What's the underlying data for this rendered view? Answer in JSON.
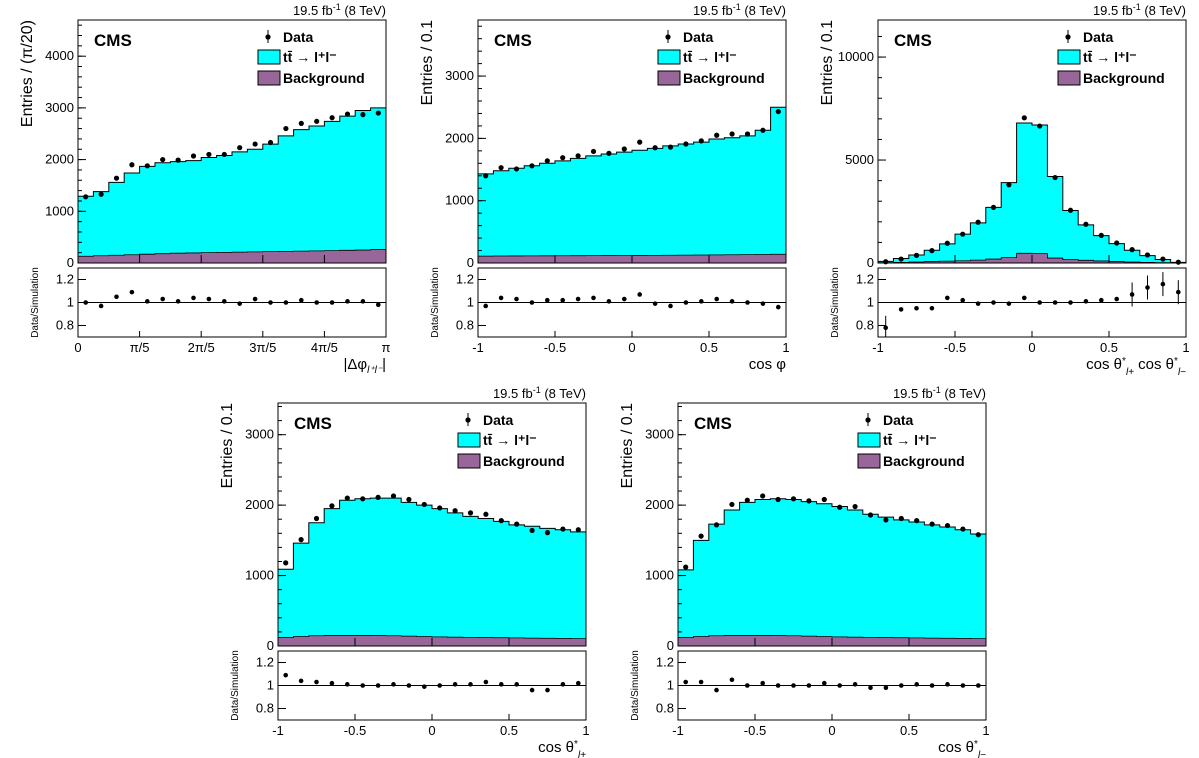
{
  "chart_data": [
    {
      "type": "bar",
      "lumi": "19.5 fb",
      "lumi_sup": "-1",
      "lumi_energy": "(8 TeV)",
      "cms_label": "CMS",
      "legend": [
        "Data",
        "tt̄ → l⁺l⁻",
        "Background"
      ],
      "ylabel": "Entries / (π/20)",
      "ratio_ylabel": "Data/Simulation",
      "xlabel": "|Δφ_l+l−|",
      "xlim": [
        0,
        3.14159
      ],
      "ylim": [
        0,
        4700
      ],
      "yticks": [
        0,
        1000,
        2000,
        3000,
        4000
      ],
      "xtick_pos": [
        0,
        0.6283,
        1.2566,
        1.885,
        2.5133,
        3.14159
      ],
      "xtick_labels": [
        "0",
        "π/5",
        "2π/5",
        "3π/5",
        "4π/5",
        "π"
      ],
      "ratio_ylim": [
        0.7,
        1.3
      ],
      "ratio_yticks": [
        0.8,
        1,
        1.2
      ],
      "bin_edges": [
        0,
        0.1571,
        0.3142,
        0.4712,
        0.6283,
        0.7854,
        0.9425,
        1.0996,
        1.2566,
        1.4137,
        1.5708,
        1.7279,
        1.885,
        2.042,
        2.1991,
        2.3562,
        2.5133,
        2.6704,
        2.8274,
        2.9845,
        3.14159
      ],
      "series": [
        {
          "name": "tt̄ → l⁺l⁻",
          "values": [
            1290,
            1380,
            1560,
            1740,
            1870,
            1940,
            1960,
            1980,
            2040,
            2080,
            2150,
            2200,
            2300,
            2460,
            2580,
            2650,
            2740,
            2840,
            2950,
            3000
          ],
          "color": "#00ffff"
        },
        {
          "name": "Background",
          "values": [
            130,
            140,
            150,
            160,
            170,
            180,
            190,
            195,
            200,
            205,
            210,
            215,
            220,
            225,
            230,
            235,
            240,
            245,
            250,
            260
          ],
          "color": "#996699"
        },
        {
          "name": "Data",
          "values": [
            1280,
            1330,
            1640,
            1900,
            1880,
            2000,
            1990,
            2070,
            2100,
            2100,
            2230,
            2300,
            2330,
            2600,
            2700,
            2740,
            2810,
            2880,
            2870,
            2900
          ]
        }
      ],
      "ratio": [
        1.0,
        0.97,
        1.05,
        1.09,
        1.01,
        1.03,
        1.01,
        1.04,
        1.03,
        1.01,
        0.99,
        1.03,
        1.0,
        1.0,
        1.02,
        1.0,
        1.0,
        1.01,
        1.01,
        0.98
      ]
    },
    {
      "type": "bar",
      "lumi": "19.5 fb",
      "lumi_sup": "-1",
      "lumi_energy": "(8 TeV)",
      "cms_label": "CMS",
      "legend": [
        "Data",
        "tt̄ → l⁺l⁻",
        "Background"
      ],
      "ylabel": "Entries / 0.1",
      "ratio_ylabel": "Data/Simulation",
      "xlabel": "cos φ",
      "xlim": [
        -1,
        1
      ],
      "ylim": [
        0,
        3900
      ],
      "yticks": [
        0,
        1000,
        2000,
        3000
      ],
      "xtick_pos": [
        -1,
        -0.5,
        0,
        0.5,
        1
      ],
      "xtick_labels": [
        "-1",
        "-0.5",
        "0",
        "0.5",
        "1"
      ],
      "ratio_ylim": [
        0.7,
        1.3
      ],
      "ratio_yticks": [
        0.8,
        1,
        1.2
      ],
      "bin_edges": [
        -1,
        -0.9,
        -0.8,
        -0.7,
        -0.6,
        -0.5,
        -0.4,
        -0.3,
        -0.2,
        -0.1,
        0,
        0.1,
        0.2,
        0.3,
        0.4,
        0.5,
        0.6,
        0.7,
        0.8,
        0.9,
        1
      ],
      "series": [
        {
          "name": "tt̄ → l⁺l⁻",
          "values": [
            1430,
            1480,
            1520,
            1560,
            1600,
            1640,
            1680,
            1720,
            1750,
            1780,
            1810,
            1840,
            1880,
            1910,
            1940,
            1990,
            2010,
            2040,
            2130,
            2500
          ],
          "color": "#00ffff"
        },
        {
          "name": "Background",
          "values": [
            110,
            112,
            113,
            114,
            115,
            116,
            117,
            118,
            119,
            120,
            121,
            122,
            124,
            126,
            128,
            130,
            132,
            134,
            136,
            140
          ],
          "color": "#996699"
        },
        {
          "name": "Data",
          "values": [
            1400,
            1530,
            1510,
            1560,
            1640,
            1690,
            1720,
            1790,
            1760,
            1830,
            1940,
            1850,
            1860,
            1910,
            1960,
            2050,
            2070,
            2070,
            2130,
            2430
          ]
        }
      ],
      "ratio": [
        0.97,
        1.04,
        1.03,
        1.0,
        1.02,
        1.02,
        1.03,
        1.04,
        1.01,
        1.03,
        1.07,
        0.99,
        0.97,
        1.0,
        1.01,
        1.03,
        1.01,
        1.0,
        0.99,
        0.96
      ]
    },
    {
      "type": "bar",
      "lumi": "19.5 fb",
      "lumi_sup": "-1",
      "lumi_energy": "(8 TeV)",
      "cms_label": "CMS",
      "legend": [
        "Data",
        "tt̄ → l⁺l⁻",
        "Background"
      ],
      "ylabel": "Entries / 0.1",
      "ratio_ylabel": "Data/Simulation",
      "xlabel": "cos θ*_l+ cos θ*_l−",
      "xlim": [
        -1,
        1
      ],
      "ylim": [
        0,
        11800
      ],
      "yticks": [
        0,
        5000,
        10000
      ],
      "xtick_pos": [
        -1,
        -0.5,
        0,
        0.5,
        1
      ],
      "xtick_labels": [
        "-1",
        "-0.5",
        "0",
        "0.5",
        "1"
      ],
      "ratio_ylim": [
        0.7,
        1.3
      ],
      "ratio_yticks": [
        0.8,
        1,
        1.2
      ],
      "bin_edges": [
        -1,
        -0.9,
        -0.8,
        -0.7,
        -0.6,
        -0.5,
        -0.4,
        -0.3,
        -0.2,
        -0.1,
        0,
        0.1,
        0.2,
        0.3,
        0.4,
        0.5,
        0.6,
        0.7,
        0.8,
        0.9,
        1
      ],
      "series": [
        {
          "name": "tt̄ → l⁺l⁻",
          "values": [
            80,
            220,
            390,
            620,
            930,
            1400,
            1950,
            2700,
            3900,
            6800,
            6700,
            4200,
            2550,
            1850,
            1330,
            940,
            620,
            360,
            170,
            30
          ],
          "color": "#00ffff"
        },
        {
          "name": "Background",
          "values": [
            20,
            30,
            50,
            70,
            90,
            110,
            140,
            190,
            260,
            470,
            460,
            240,
            170,
            130,
            100,
            70,
            50,
            30,
            20,
            10
          ],
          "color": "#996699"
        },
        {
          "name": "Data",
          "values": [
            60,
            190,
            370,
            600,
            960,
            1400,
            1980,
            2700,
            3800,
            7050,
            6650,
            4150,
            2560,
            1880,
            1340,
            970,
            650,
            390,
            190,
            40
          ]
        }
      ],
      "ratio": [
        0.78,
        0.94,
        0.95,
        0.95,
        1.04,
        1.02,
        0.99,
        1.0,
        0.99,
        1.04,
        1.0,
        1.0,
        1.0,
        1.01,
        1.02,
        1.03,
        1.07,
        1.13,
        1.16,
        1.09
      ]
    },
    {
      "type": "bar",
      "lumi": "19.5 fb",
      "lumi_sup": "-1",
      "lumi_energy": "(8 TeV)",
      "cms_label": "CMS",
      "legend": [
        "Data",
        "tt̄ → l⁺l⁻",
        "Background"
      ],
      "ylabel": "Entries / 0.1",
      "ratio_ylabel": "Data/Simulation",
      "xlabel": "cos θ*_l+",
      "xlim": [
        -1,
        1
      ],
      "ylim": [
        0,
        3450
      ],
      "yticks": [
        0,
        1000,
        2000,
        3000
      ],
      "xtick_pos": [
        -1,
        -0.5,
        0,
        0.5,
        1
      ],
      "xtick_labels": [
        "-1",
        "-0.5",
        "0",
        "0.5",
        "1"
      ],
      "ratio_ylim": [
        0.7,
        1.3
      ],
      "ratio_yticks": [
        0.8,
        1,
        1.2
      ],
      "bin_edges": [
        -1,
        -0.9,
        -0.8,
        -0.7,
        -0.6,
        -0.5,
        -0.4,
        -0.3,
        -0.2,
        -0.1,
        0,
        0.1,
        0.2,
        0.3,
        0.4,
        0.5,
        0.6,
        0.7,
        0.8,
        0.9,
        1
      ],
      "series": [
        {
          "name": "tt̄ → l⁺l⁻",
          "values": [
            1090,
            1460,
            1750,
            1950,
            2070,
            2090,
            2100,
            2100,
            2040,
            2000,
            1950,
            1890,
            1840,
            1810,
            1770,
            1720,
            1700,
            1670,
            1650,
            1620
          ],
          "color": "#00ffff"
        },
        {
          "name": "Background",
          "values": [
            120,
            135,
            145,
            150,
            150,
            150,
            148,
            145,
            140,
            135,
            130,
            125,
            122,
            120,
            118,
            115,
            112,
            110,
            108,
            105
          ],
          "color": "#996699"
        },
        {
          "name": "Data",
          "values": [
            1180,
            1510,
            1810,
            1990,
            2100,
            2090,
            2110,
            2130,
            2080,
            2010,
            1960,
            1920,
            1890,
            1870,
            1780,
            1730,
            1640,
            1610,
            1660,
            1650
          ]
        }
      ],
      "ratio": [
        1.09,
        1.04,
        1.03,
        1.02,
        1.01,
        1.0,
        1.0,
        1.01,
        1.0,
        0.99,
        1.0,
        1.01,
        1.01,
        1.03,
        1.01,
        1.01,
        0.96,
        0.96,
        1.01,
        1.02
      ]
    },
    {
      "type": "bar",
      "lumi": "19.5 fb",
      "lumi_sup": "-1",
      "lumi_energy": "(8 TeV)",
      "cms_label": "CMS",
      "legend": [
        "Data",
        "tt̄ → l⁺l⁻",
        "Background"
      ],
      "ylabel": "Entries / 0.1",
      "ratio_ylabel": "Data/Simulation",
      "xlabel": "cos θ*_l−",
      "xlim": [
        -1,
        1
      ],
      "ylim": [
        0,
        3450
      ],
      "yticks": [
        0,
        1000,
        2000,
        3000
      ],
      "xtick_pos": [
        -1,
        -0.5,
        0,
        0.5,
        1
      ],
      "xtick_labels": [
        "-1",
        "-0.5",
        "0",
        "0.5",
        "1"
      ],
      "ratio_ylim": [
        0.7,
        1.3
      ],
      "ratio_yticks": [
        0.8,
        1,
        1.2
      ],
      "bin_edges": [
        -1,
        -0.9,
        -0.8,
        -0.7,
        -0.6,
        -0.5,
        -0.4,
        -0.3,
        -0.2,
        -0.1,
        0,
        0.1,
        0.2,
        0.3,
        0.4,
        0.5,
        0.6,
        0.7,
        0.8,
        0.9,
        1
      ],
      "series": [
        {
          "name": "tt̄ → l⁺l⁻",
          "values": [
            1080,
            1500,
            1730,
            1930,
            2040,
            2080,
            2090,
            2080,
            2050,
            2020,
            1980,
            1930,
            1870,
            1830,
            1790,
            1760,
            1720,
            1690,
            1650,
            1590
          ],
          "color": "#00ffff"
        },
        {
          "name": "Background",
          "values": [
            120,
            135,
            145,
            150,
            150,
            150,
            148,
            145,
            140,
            135,
            130,
            125,
            122,
            120,
            118,
            115,
            112,
            110,
            108,
            105
          ],
          "color": "#996699"
        },
        {
          "name": "Data",
          "values": [
            1120,
            1560,
            1720,
            2010,
            2070,
            2130,
            2080,
            2090,
            2060,
            2080,
            1970,
            1980,
            1860,
            1790,
            1810,
            1780,
            1730,
            1710,
            1660,
            1580
          ]
        }
      ],
      "ratio": [
        1.03,
        1.03,
        0.96,
        1.05,
        1.0,
        1.02,
        1.0,
        1.0,
        1.0,
        1.02,
        1.0,
        1.01,
        0.98,
        0.98,
        1.0,
        1.01,
        1.0,
        1.01,
        1.0,
        1.0
      ]
    }
  ]
}
